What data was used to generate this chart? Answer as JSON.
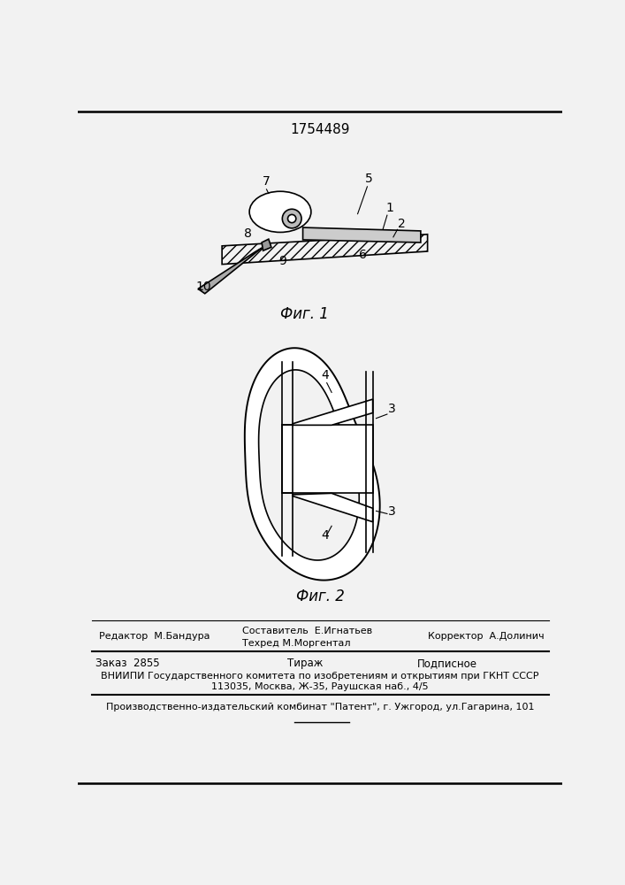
{
  "patent_number": "1754489",
  "bg_color": "#f2f2f2",
  "line_color": "#000000",
  "fig1_caption": "Фиг. 1",
  "fig2_caption": "Фиг. 2",
  "footer_line1_left": "Редактор  М.Бандура",
  "footer_line1_mid_top": "Составитель  Е.Игнатьев",
  "footer_line1_mid_bot": "Техред М.Моргентал",
  "footer_line1_right": "Корректор  А.Долинич",
  "footer_line2a": "Заказ  2855",
  "footer_line2b": "Тираж",
  "footer_line2c": "Подписное",
  "footer_line3": "ВНИИПИ Государственного комитета по изобретениям и открытиям при ГКНТ СССР",
  "footer_line4": "113035, Москва, Ж-35, Раушская наб., 4/5",
  "footer_line5": "Производственно-издательский комбинат \"Патент\", г. Ужгород, ул.Гагарина, 101"
}
